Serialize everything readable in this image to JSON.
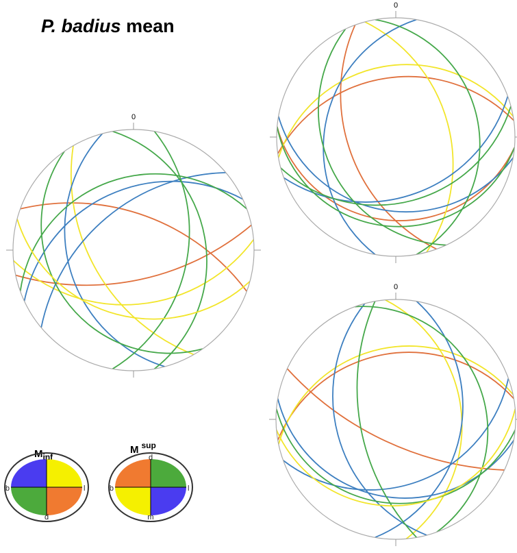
{
  "title": {
    "italic": "P. badius",
    "rest": "mean"
  },
  "stereonets": [
    {
      "north_label": "0"
    },
    {
      "north_label": "0"
    },
    {
      "north_label": "0"
    }
  ],
  "legend": [
    {
      "symbol": "M",
      "index": "inf",
      "labels": {
        "top": "m",
        "bottom": "d",
        "left": "b",
        "right": "l"
      }
    },
    {
      "symbol": "M",
      "index": "sup",
      "labels": {
        "top": "d",
        "bottom": "m",
        "left": "b",
        "right": "l"
      }
    }
  ]
}
